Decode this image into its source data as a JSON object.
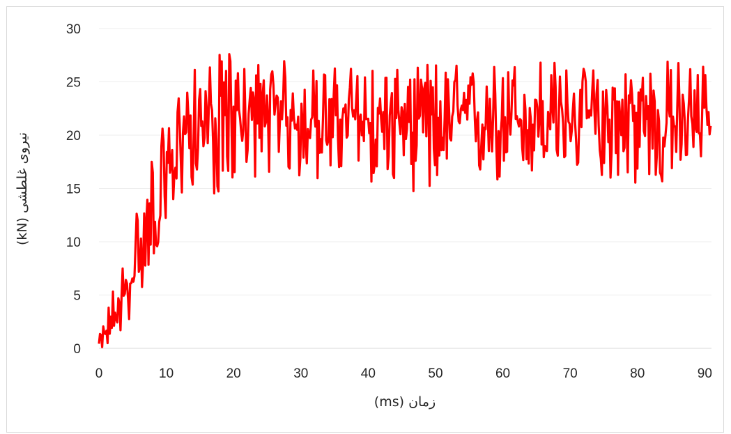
{
  "chart_data": {
    "type": "line",
    "title": "",
    "xlabel": "زمان (ms)",
    "ylabel": "نیروی غلطشی (kN)",
    "xlim": [
      0,
      91
    ],
    "ylim": [
      0,
      30
    ],
    "x_ticks": [
      0,
      10,
      20,
      30,
      40,
      50,
      60,
      70,
      80,
      90
    ],
    "y_ticks": [
      0,
      5,
      10,
      15,
      20,
      25,
      30
    ],
    "grid": "horizontal",
    "legend": "none",
    "series": [
      {
        "color": "#ff0000",
        "x": [
          0,
          1,
          2,
          3,
          4,
          5,
          6,
          7,
          8,
          9,
          10,
          11,
          12,
          13,
          15,
          17,
          19,
          21,
          23,
          25,
          27,
          30,
          35,
          40,
          45,
          50,
          55,
          60,
          65,
          70,
          75,
          80,
          85,
          90,
          91
        ],
        "mean": [
          0.3,
          1.2,
          2.6,
          3.8,
          5.2,
          6.6,
          8.8,
          10.6,
          12.0,
          13.2,
          14.6,
          17.4,
          19.8,
          20.6,
          21.2,
          21.5,
          21.7,
          21.8,
          21.7,
          21.6,
          21.6,
          21.5,
          21.6,
          21.5,
          21.6,
          21.5,
          21.5,
          21.4,
          21.6,
          21.5,
          21.5,
          21.5,
          21.6,
          21.6,
          21.6
        ],
        "low": [
          0.0,
          0.0,
          0.2,
          1.0,
          2.0,
          3.0,
          5.5,
          5.5,
          8.5,
          9.0,
          9.0,
          11.5,
          13.0,
          15.0,
          15.5,
          13.8,
          15.0,
          15.5,
          16.0,
          16.5,
          16.0,
          15.5,
          15.8,
          15.5,
          15.0,
          14.0,
          15.8,
          15.0,
          16.0,
          16.5,
          16.0,
          15.0,
          15.0,
          17.5,
          18.0
        ],
        "high": [
          1.0,
          3.2,
          5.8,
          6.8,
          9.6,
          11.8,
          15.2,
          15.2,
          19.5,
          20.5,
          20.8,
          22.0,
          25.2,
          26.0,
          26.5,
          27.0,
          28.3,
          26.8,
          27.0,
          27.3,
          27.2,
          26.5,
          26.5,
          27.0,
          26.0,
          27.2,
          26.5,
          27.0,
          27.8,
          26.5,
          26.5,
          27.0,
          27.2,
          27.2,
          25.0
        ]
      }
    ]
  }
}
